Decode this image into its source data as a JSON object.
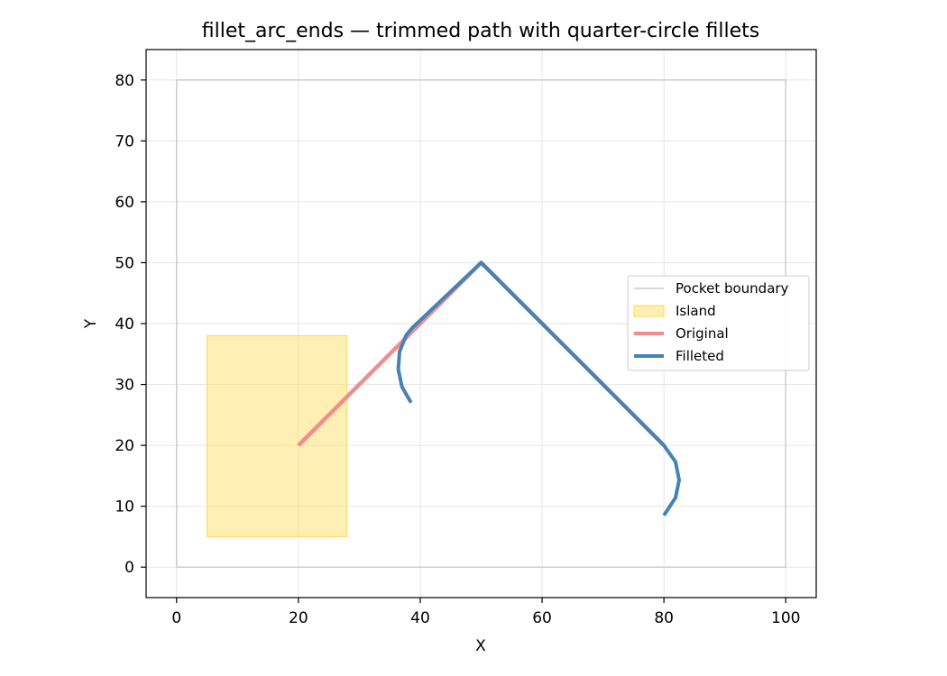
{
  "chart_data": {
    "type": "line",
    "title": "fillet_arc_ends — trimmed path with quarter-circle fillets",
    "xlabel": "X",
    "ylabel": "Y",
    "xlim": [
      -5,
      105
    ],
    "ylim": [
      -5,
      85
    ],
    "xticks": [
      0,
      20,
      40,
      60,
      80,
      100
    ],
    "yticks": [
      0,
      10,
      20,
      30,
      40,
      50,
      60,
      70,
      80
    ],
    "xtick_labels": [
      "0",
      "20",
      "40",
      "60",
      "80",
      "100"
    ],
    "ytick_labels": [
      "0",
      "10",
      "20",
      "30",
      "40",
      "50",
      "60",
      "70",
      "80"
    ],
    "grid": true,
    "legend_position": "center-right",
    "series": [
      {
        "name": "Pocket boundary",
        "kind": "line",
        "color": "#cccccc",
        "points": [
          [
            0,
            0
          ],
          [
            100,
            0
          ],
          [
            100,
            80
          ],
          [
            0,
            80
          ],
          [
            0,
            0
          ]
        ]
      },
      {
        "name": "Island",
        "kind": "fill",
        "color": "#ffe57f",
        "edge_color": "#ffd94a",
        "points": [
          [
            5,
            5
          ],
          [
            28,
            5
          ],
          [
            28,
            38
          ],
          [
            5,
            38
          ],
          [
            5,
            5
          ]
        ]
      },
      {
        "name": "Original",
        "kind": "line",
        "color": "#ee8888",
        "points": [
          [
            20,
            20
          ],
          [
            50,
            50
          ],
          [
            80,
            20
          ]
        ]
      },
      {
        "name": "Filleted",
        "kind": "line",
        "color": "#4682b4",
        "points": [
          [
            38.5,
            27
          ],
          [
            37,
            29.6
          ],
          [
            36.4,
            32.5
          ],
          [
            36.6,
            35.4
          ],
          [
            37.7,
            38.1
          ],
          [
            38.7,
            39.3
          ],
          [
            50,
            50
          ],
          [
            80,
            20
          ],
          [
            81.9,
            17.3
          ],
          [
            82.5,
            14.3
          ],
          [
            81.9,
            11.4
          ],
          [
            80,
            8.5
          ]
        ]
      }
    ]
  }
}
